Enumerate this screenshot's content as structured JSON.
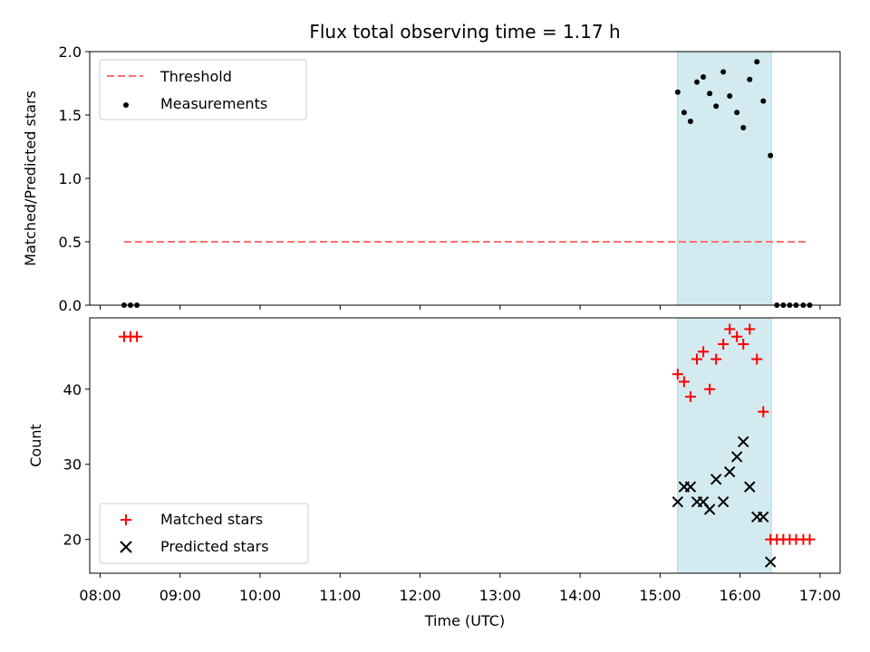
{
  "colors": {
    "span": "#d3eaf0",
    "span_edge": "#a9d3df",
    "threshold": "#ff7070",
    "measurement": "#000000",
    "matched": "#ff0000",
    "predicted": "#000000"
  },
  "chart_data": [
    {
      "type": "scatter",
      "title": "Flux total observing time = 1.17 h",
      "ylabel": "Matched/Predicted stars",
      "xlabel": "",
      "xlim": [
        7.87,
        17.25
      ],
      "ylim": [
        0,
        2.0
      ],
      "yticks": [
        0.0,
        0.5,
        1.0,
        1.5,
        2.0
      ],
      "ytick_labels": [
        "0.0",
        "0.5",
        "1.0",
        "1.5",
        "2.0"
      ],
      "shaded_span": [
        15.22,
        16.39
      ],
      "legend": {
        "placement": "top-left",
        "entries": [
          {
            "label": "Threshold",
            "marker": "dashed-line"
          },
          {
            "label": "Measurements",
            "marker": "dot"
          }
        ]
      },
      "series": [
        {
          "name": "Threshold",
          "kind": "line",
          "x": [
            8.3,
            16.85
          ],
          "y": [
            0.5,
            0.5
          ]
        },
        {
          "name": "Measurements",
          "kind": "scatter",
          "x": [
            8.3,
            8.38,
            8.46,
            15.22,
            15.3,
            15.38,
            15.46,
            15.54,
            15.62,
            15.7,
            15.79,
            15.87,
            15.96,
            16.04,
            16.12,
            16.21,
            16.29,
            16.38,
            16.46,
            16.54,
            16.62,
            16.7,
            16.79,
            16.87
          ],
          "y": [
            0.0,
            0.0,
            0.0,
            1.68,
            1.52,
            1.45,
            1.76,
            1.8,
            1.67,
            1.57,
            1.84,
            1.65,
            1.52,
            1.4,
            1.78,
            1.92,
            1.61,
            1.18,
            0.0,
            0.0,
            0.0,
            0.0,
            0.0,
            0.0
          ]
        }
      ]
    },
    {
      "type": "scatter",
      "title": "",
      "ylabel": "Count",
      "xlabel": "Time (UTC)",
      "xlim": [
        7.87,
        17.25
      ],
      "ylim": [
        15.5,
        49.5
      ],
      "yticks": [
        20,
        30,
        40
      ],
      "ytick_labels": [
        "20",
        "30",
        "40"
      ],
      "xticks": [
        8,
        9,
        10,
        11,
        12,
        13,
        14,
        15,
        16,
        17
      ],
      "xtick_labels": [
        "08:00",
        "09:00",
        "10:00",
        "11:00",
        "12:00",
        "13:00",
        "14:00",
        "15:00",
        "16:00",
        "17:00"
      ],
      "shaded_span": [
        15.22,
        16.39
      ],
      "legend": {
        "placement": "bottom-left",
        "entries": [
          {
            "label": "Matched stars",
            "marker": "plus"
          },
          {
            "label": "Predicted stars",
            "marker": "x"
          }
        ]
      },
      "series": [
        {
          "name": "Matched stars",
          "kind": "scatter",
          "x": [
            8.3,
            8.38,
            8.46,
            15.22,
            15.3,
            15.38,
            15.46,
            15.54,
            15.62,
            15.7,
            15.79,
            15.87,
            15.96,
            16.04,
            16.12,
            16.21,
            16.29,
            16.38,
            16.46,
            16.54,
            16.62,
            16.7,
            16.79,
            16.87
          ],
          "y": [
            47,
            47,
            47,
            42,
            41,
            39,
            44,
            45,
            40,
            44,
            46,
            48,
            47,
            46,
            48,
            44,
            37,
            20,
            20,
            20,
            20,
            20,
            20,
            20
          ]
        },
        {
          "name": "Predicted stars",
          "kind": "scatter",
          "x": [
            15.22,
            15.3,
            15.38,
            15.46,
            15.54,
            15.62,
            15.7,
            15.79,
            15.87,
            15.96,
            16.04,
            16.12,
            16.21,
            16.29,
            16.38
          ],
          "y": [
            25,
            27,
            27,
            25,
            25,
            24,
            28,
            25,
            29,
            31,
            33,
            27,
            23,
            23,
            17
          ]
        }
      ]
    }
  ]
}
